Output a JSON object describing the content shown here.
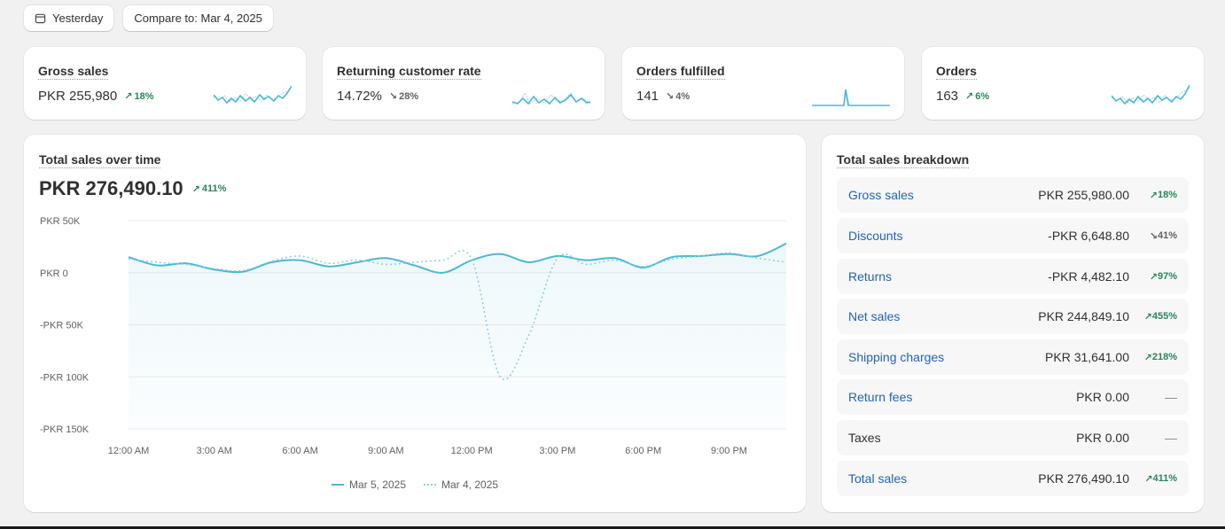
{
  "filters": {
    "date_label": "Yesterday",
    "compare_label": "Compare to: Mar 4, 2025"
  },
  "metrics": [
    {
      "title": "Gross sales",
      "value": "PKR 255,980",
      "delta": "18%",
      "direction": "up"
    },
    {
      "title": "Returning customer rate",
      "value": "14.72%",
      "delta": "28%",
      "direction": "down"
    },
    {
      "title": "Orders fulfilled",
      "value": "141",
      "delta": "4%",
      "direction": "down"
    },
    {
      "title": "Orders",
      "value": "163",
      "delta": "6%",
      "direction": "up"
    }
  ],
  "sales_chart": {
    "title": "Total sales over time",
    "total": "PKR 276,490.10",
    "delta": "411%",
    "direction": "up"
  },
  "chart_data": {
    "type": "line",
    "y_ticks": [
      "PKR 50K",
      "PKR 0",
      "-PKR 50K",
      "-PKR 100K",
      "-PKR 150K"
    ],
    "y_tick_values": [
      50000,
      0,
      -50000,
      -100000,
      -150000
    ],
    "x_ticks": [
      "12:00 AM",
      "3:00 AM",
      "6:00 AM",
      "9:00 AM",
      "12:00 PM",
      "3:00 PM",
      "6:00 PM",
      "9:00 PM"
    ],
    "ylim": [
      -150000,
      50000
    ],
    "x_hours": [
      0,
      1,
      2,
      3,
      4,
      5,
      6,
      7,
      8,
      9,
      10,
      11,
      12,
      13,
      14,
      15,
      16,
      17,
      18,
      19,
      20,
      21,
      22,
      23
    ],
    "series": [
      {
        "name": "Mar 5, 2025",
        "style": "solid",
        "color": "#4bb8d6",
        "values": [
          15000,
          7000,
          9000,
          3000,
          1000,
          10000,
          12000,
          6000,
          10000,
          14000,
          7000,
          0,
          12000,
          18000,
          10000,
          16000,
          12000,
          14000,
          5000,
          15000,
          16000,
          18000,
          16000,
          28000
        ]
      },
      {
        "name": "Mar 4, 2025",
        "style": "dotted",
        "color": "#8ccde0",
        "values": [
          13000,
          10000,
          8000,
          4000,
          2000,
          11000,
          16000,
          9000,
          12000,
          8000,
          10000,
          12000,
          13000,
          -100000,
          -60000,
          14000,
          8000,
          12000,
          6000,
          13000,
          16000,
          19000,
          14000,
          10000
        ]
      }
    ]
  },
  "breakdown": {
    "title": "Total sales breakdown",
    "rows": [
      {
        "label": "Gross sales",
        "value": "PKR 255,980.00",
        "delta": "18%",
        "direction": "up",
        "link": true
      },
      {
        "label": "Discounts",
        "value": "-PKR 6,648.80",
        "delta": "41%",
        "direction": "down",
        "link": true
      },
      {
        "label": "Returns",
        "value": "-PKR 4,482.10",
        "delta": "97%",
        "direction": "up",
        "link": true
      },
      {
        "label": "Net sales",
        "value": "PKR 244,849.10",
        "delta": "455%",
        "direction": "up",
        "link": true
      },
      {
        "label": "Shipping charges",
        "value": "PKR 31,641.00",
        "delta": "218%",
        "direction": "up",
        "link": true
      },
      {
        "label": "Return fees",
        "value": "PKR 0.00",
        "delta": "—",
        "direction": "none",
        "link": true
      },
      {
        "label": "Taxes",
        "value": "PKR 0.00",
        "delta": "—",
        "direction": "none",
        "link": false
      },
      {
        "label": "Total sales",
        "value": "PKR 276,490.10",
        "delta": "411%",
        "direction": "up",
        "link": true
      }
    ]
  },
  "colors": {
    "accent": "#4bb8d6",
    "positive": "#29845a",
    "link": "#2463b5"
  }
}
